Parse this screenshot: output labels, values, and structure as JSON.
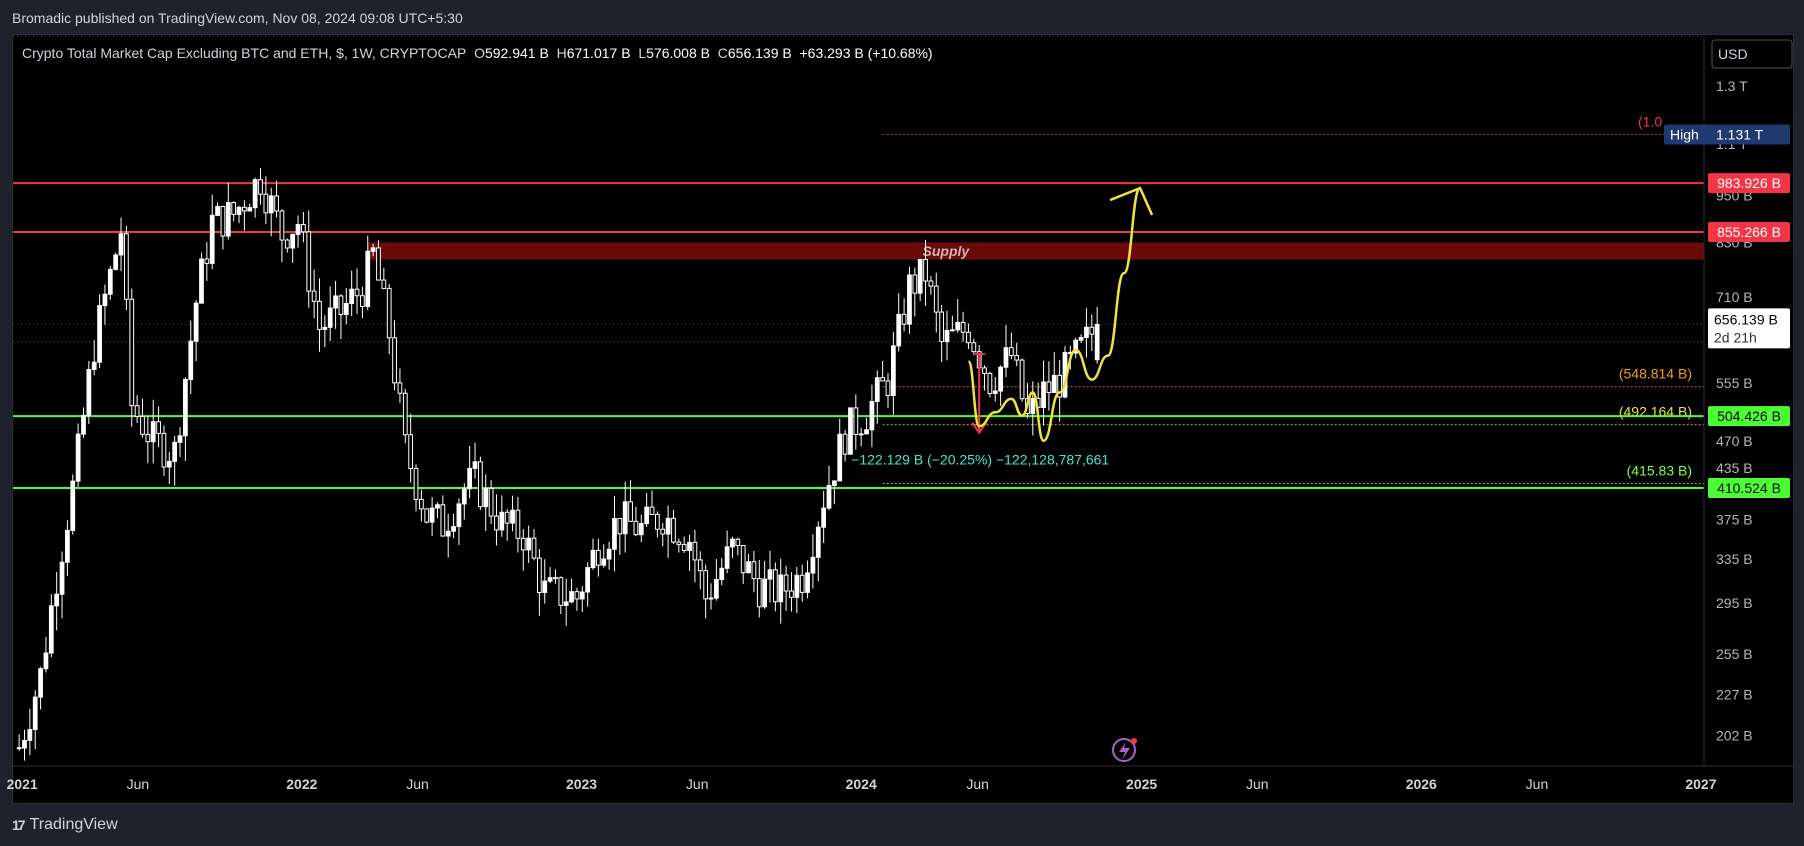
{
  "header": {
    "publisher_text": "Bromadic published on TradingView.com, Nov 08, 2024 09:08 UTC+5:30"
  },
  "legend": {
    "title": "Crypto Total Market Cap Excluding BTC and ETH, $, 1W, CRYPTOCAP",
    "o_label": "O",
    "o_value": "592.941 B",
    "h_label": "H",
    "h_value": "671.017 B",
    "l_label": "L",
    "l_value": "576.008 B",
    "c_label": "C",
    "c_value": "656.139 B",
    "change": "+63.293 B (+10.68%)"
  },
  "footer": {
    "brand": "TradingView",
    "logo_glyph": "17"
  },
  "colors": {
    "background": "#000000",
    "candle": "#ffffff",
    "resistance": "#f23645",
    "support": "#4cff33",
    "supply_zone": "#6b0a0a",
    "drawing": "#f0e040",
    "measure": "#3de8d3",
    "fib_orange": "#f39c12",
    "fib_yellow": "#f0e040",
    "fib_green": "#7dff3a",
    "fib_red": "#f23645"
  },
  "chart_data": {
    "type": "candlestick",
    "symbol": "CRYPTOCAP",
    "interval": "1W",
    "y_scale": "log",
    "ylim": [
      185,
      1500
    ],
    "x_range": [
      "2020-12-20",
      "2027-01-05"
    ],
    "y_axis_currency": "USD",
    "y_ticks": [
      "1.3 T",
      "1.1 T",
      "950 B",
      "830 B",
      "710 B",
      "555 B",
      "470 B",
      "435 B",
      "375 B",
      "335 B",
      "295 B",
      "255 B",
      "227 B",
      "202 B"
    ],
    "x_ticks": [
      {
        "label": "2021",
        "date": "2021-01-01",
        "bold": true
      },
      {
        "label": "Jun",
        "date": "2021-06-01",
        "bold": false
      },
      {
        "label": "2022",
        "date": "2022-01-01",
        "bold": true
      },
      {
        "label": "Jun",
        "date": "2022-06-01",
        "bold": false
      },
      {
        "label": "2023",
        "date": "2023-01-01",
        "bold": true
      },
      {
        "label": "Jun",
        "date": "2023-06-01",
        "bold": false
      },
      {
        "label": "2024",
        "date": "2024-01-01",
        "bold": true
      },
      {
        "label": "Jun",
        "date": "2024-06-01",
        "bold": false
      },
      {
        "label": "2025",
        "date": "2025-01-01",
        "bold": true
      },
      {
        "label": "Jun",
        "date": "2025-06-01",
        "bold": false
      },
      {
        "label": "2026",
        "date": "2026-01-01",
        "bold": true
      },
      {
        "label": "Jun",
        "date": "2026-06-01",
        "bold": false
      },
      {
        "label": "2027",
        "date": "2027-01-01",
        "bold": true
      }
    ],
    "price_path": [
      [
        "2020-12-28",
        195
      ],
      [
        "2021-01-25",
        240
      ],
      [
        "2021-02-15",
        320
      ],
      [
        "2021-03-10",
        420
      ],
      [
        "2021-04-05",
        620
      ],
      [
        "2021-05-10",
        860
      ],
      [
        "2021-05-24",
        520
      ],
      [
        "2021-06-21",
        470
      ],
      [
        "2021-07-19",
        455
      ],
      [
        "2021-08-16",
        700
      ],
      [
        "2021-09-06",
        880
      ],
      [
        "2021-10-04",
        900
      ],
      [
        "2021-11-08",
        1000
      ],
      [
        "2021-12-06",
        850
      ],
      [
        "2021-12-27",
        880
      ],
      [
        "2022-01-24",
        650
      ],
      [
        "2022-02-21",
        680
      ],
      [
        "2022-03-21",
        730
      ],
      [
        "2022-04-04",
        800
      ],
      [
        "2022-04-25",
        640
      ],
      [
        "2022-05-16",
        460
      ],
      [
        "2022-06-13",
        380
      ],
      [
        "2022-07-04",
        370
      ],
      [
        "2022-08-01",
        410
      ],
      [
        "2022-08-15",
        420
      ],
      [
        "2022-09-19",
        370
      ],
      [
        "2022-10-17",
        360
      ],
      [
        "2022-11-14",
        305
      ],
      [
        "2022-12-26",
        300
      ],
      [
        "2023-01-23",
        350
      ],
      [
        "2023-02-20",
        375
      ],
      [
        "2023-03-20",
        365
      ],
      [
        "2023-04-17",
        380
      ],
      [
        "2023-05-22",
        355
      ],
      [
        "2023-06-12",
        300
      ],
      [
        "2023-07-17",
        345
      ],
      [
        "2023-08-21",
        310
      ],
      [
        "2023-09-18",
        305
      ],
      [
        "2023-10-16",
        320
      ],
      [
        "2023-11-13",
        400
      ],
      [
        "2023-12-11",
        480
      ],
      [
        "2024-01-08",
        510
      ],
      [
        "2024-02-05",
        560
      ],
      [
        "2024-03-04",
        730
      ],
      [
        "2024-03-25",
        760
      ],
      [
        "2024-04-15",
        620
      ],
      [
        "2024-05-20",
        650
      ],
      [
        "2024-06-17",
        560
      ],
      [
        "2024-07-15",
        600
      ],
      [
        "2024-08-05",
        500
      ],
      [
        "2024-08-26",
        540
      ],
      [
        "2024-09-16",
        560
      ],
      [
        "2024-10-14",
        610
      ],
      [
        "2024-11-04",
        656
      ]
    ],
    "last_candle": {
      "date": "2024-11-04",
      "open": 592.941,
      "high": 671.017,
      "low": 576.008,
      "close": 656.139
    },
    "horizontal_levels": [
      {
        "value": 983.926,
        "label": "983.926 B",
        "kind": "resistance",
        "color": "#f23645",
        "from": "2020-12-20"
      },
      {
        "value": 855.266,
        "label": "855.266 B",
        "kind": "resistance",
        "color": "#f23645",
        "from": "2020-12-20"
      },
      {
        "value": 504.426,
        "label": "504.426 B",
        "kind": "support",
        "color": "#4cff33",
        "from": "2020-12-20"
      },
      {
        "value": 410.524,
        "label": "410.524 B",
        "kind": "support",
        "color": "#4cff33",
        "from": "2020-12-20"
      }
    ],
    "fib_levels": [
      {
        "value": 1131,
        "label": "(1.0",
        "color": "#f23645"
      },
      {
        "value": 548.814,
        "label": "(548.814 B)",
        "color": "#f39c12"
      },
      {
        "value": 492.164,
        "label": "(492.164 B)",
        "color": "#f0e040"
      },
      {
        "value": 415.83,
        "label": "(415.83 B)",
        "color": "#7dff3a"
      }
    ],
    "fib_start": "2024-01-29",
    "supply_zone": {
      "label": "Supply",
      "from": "2022-03-28",
      "low": 790,
      "high": 830
    },
    "high_marker": {
      "label": "High",
      "value_label": "1.131 T",
      "value": 1131
    },
    "current_price": {
      "label": "656.139 B",
      "countdown": "2d 21h",
      "value": 656.139
    },
    "dotted_levels": [
      1500,
      656.139,
      624
    ],
    "measure": {
      "from_date": "2024-06-03",
      "from_value": 603,
      "to_value": 481,
      "text": "−122.129 B (−20.25%) −122,128,787,661"
    },
    "projection_path": [
      [
        "2024-05-20",
        590
      ],
      [
        "2024-06-03",
        490
      ],
      [
        "2024-06-24",
        510
      ],
      [
        "2024-07-15",
        530
      ],
      [
        "2024-07-29",
        505
      ],
      [
        "2024-08-12",
        540
      ],
      [
        "2024-08-26",
        470
      ],
      [
        "2024-09-16",
        540
      ],
      [
        "2024-10-07",
        610
      ],
      [
        "2024-10-28",
        560
      ],
      [
        "2024-11-18",
        600
      ],
      [
        "2024-12-09",
        760
      ],
      [
        "2024-12-30",
        970
      ]
    ],
    "projection_arrow_tip": [
      "2024-12-30",
      970
    ]
  }
}
